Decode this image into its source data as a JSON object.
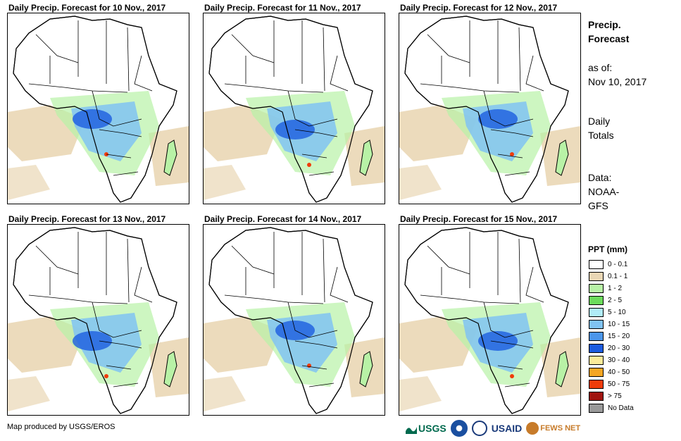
{
  "panels": [
    {
      "title": "Daily Precip. Forecast for 10 Nov., 2017"
    },
    {
      "title": "Daily Precip. Forecast for 11 Nov., 2017"
    },
    {
      "title": "Daily Precip. Forecast for 12 Nov., 2017"
    },
    {
      "title": "Daily Precip. Forecast for 13 Nov., 2017"
    },
    {
      "title": "Daily Precip. Forecast for 14 Nov., 2017"
    },
    {
      "title": "Daily Precip. Forecast for 15 Nov., 2017"
    }
  ],
  "info": {
    "title_line1": "Precip.",
    "title_line2": "Forecast",
    "asof_line1": "as of:",
    "asof_line2": "Nov 10, 2017",
    "totals_line1": "Daily",
    "totals_line2": "Totals",
    "data_line1": "Data:",
    "data_line2": "NOAA-",
    "data_line3": "GFS"
  },
  "legend": {
    "title": "PPT (mm)",
    "items": [
      {
        "label": "0 - 0.1",
        "color": "#ffffff"
      },
      {
        "label": "0.1 - 1",
        "color": "#ead7b5"
      },
      {
        "label": "1 - 2",
        "color": "#b8f2a6"
      },
      {
        "label": "2 - 5",
        "color": "#6cdc5c"
      },
      {
        "label": "5 - 10",
        "color": "#b0ecf7"
      },
      {
        "label": "10 - 15",
        "color": "#80c3f2"
      },
      {
        "label": "15 - 20",
        "color": "#4c96ea"
      },
      {
        "label": "20 - 30",
        "color": "#1c5ce0"
      },
      {
        "label": "30 - 40",
        "color": "#fbeb9a"
      },
      {
        "label": "40 - 50",
        "color": "#f5a623"
      },
      {
        "label": "50 - 75",
        "color": "#f03c0a"
      },
      {
        "label": "> 75",
        "color": "#a0140f"
      },
      {
        "label": "No Data",
        "color": "#999999"
      }
    ]
  },
  "footer": {
    "credit": "Map produced by USGS/EROS"
  },
  "logos": {
    "usgs": "USGS",
    "usaid": "USAID",
    "fewsnet": "FEWS NET"
  },
  "colors": {
    "land": "#ffffff",
    "border": "#000000",
    "dry": "#ead7b5",
    "light": "#b8f2a6",
    "moderate": "#80c3f2",
    "heavy": "#1c5ce0",
    "extreme": "#f03c0a"
  }
}
